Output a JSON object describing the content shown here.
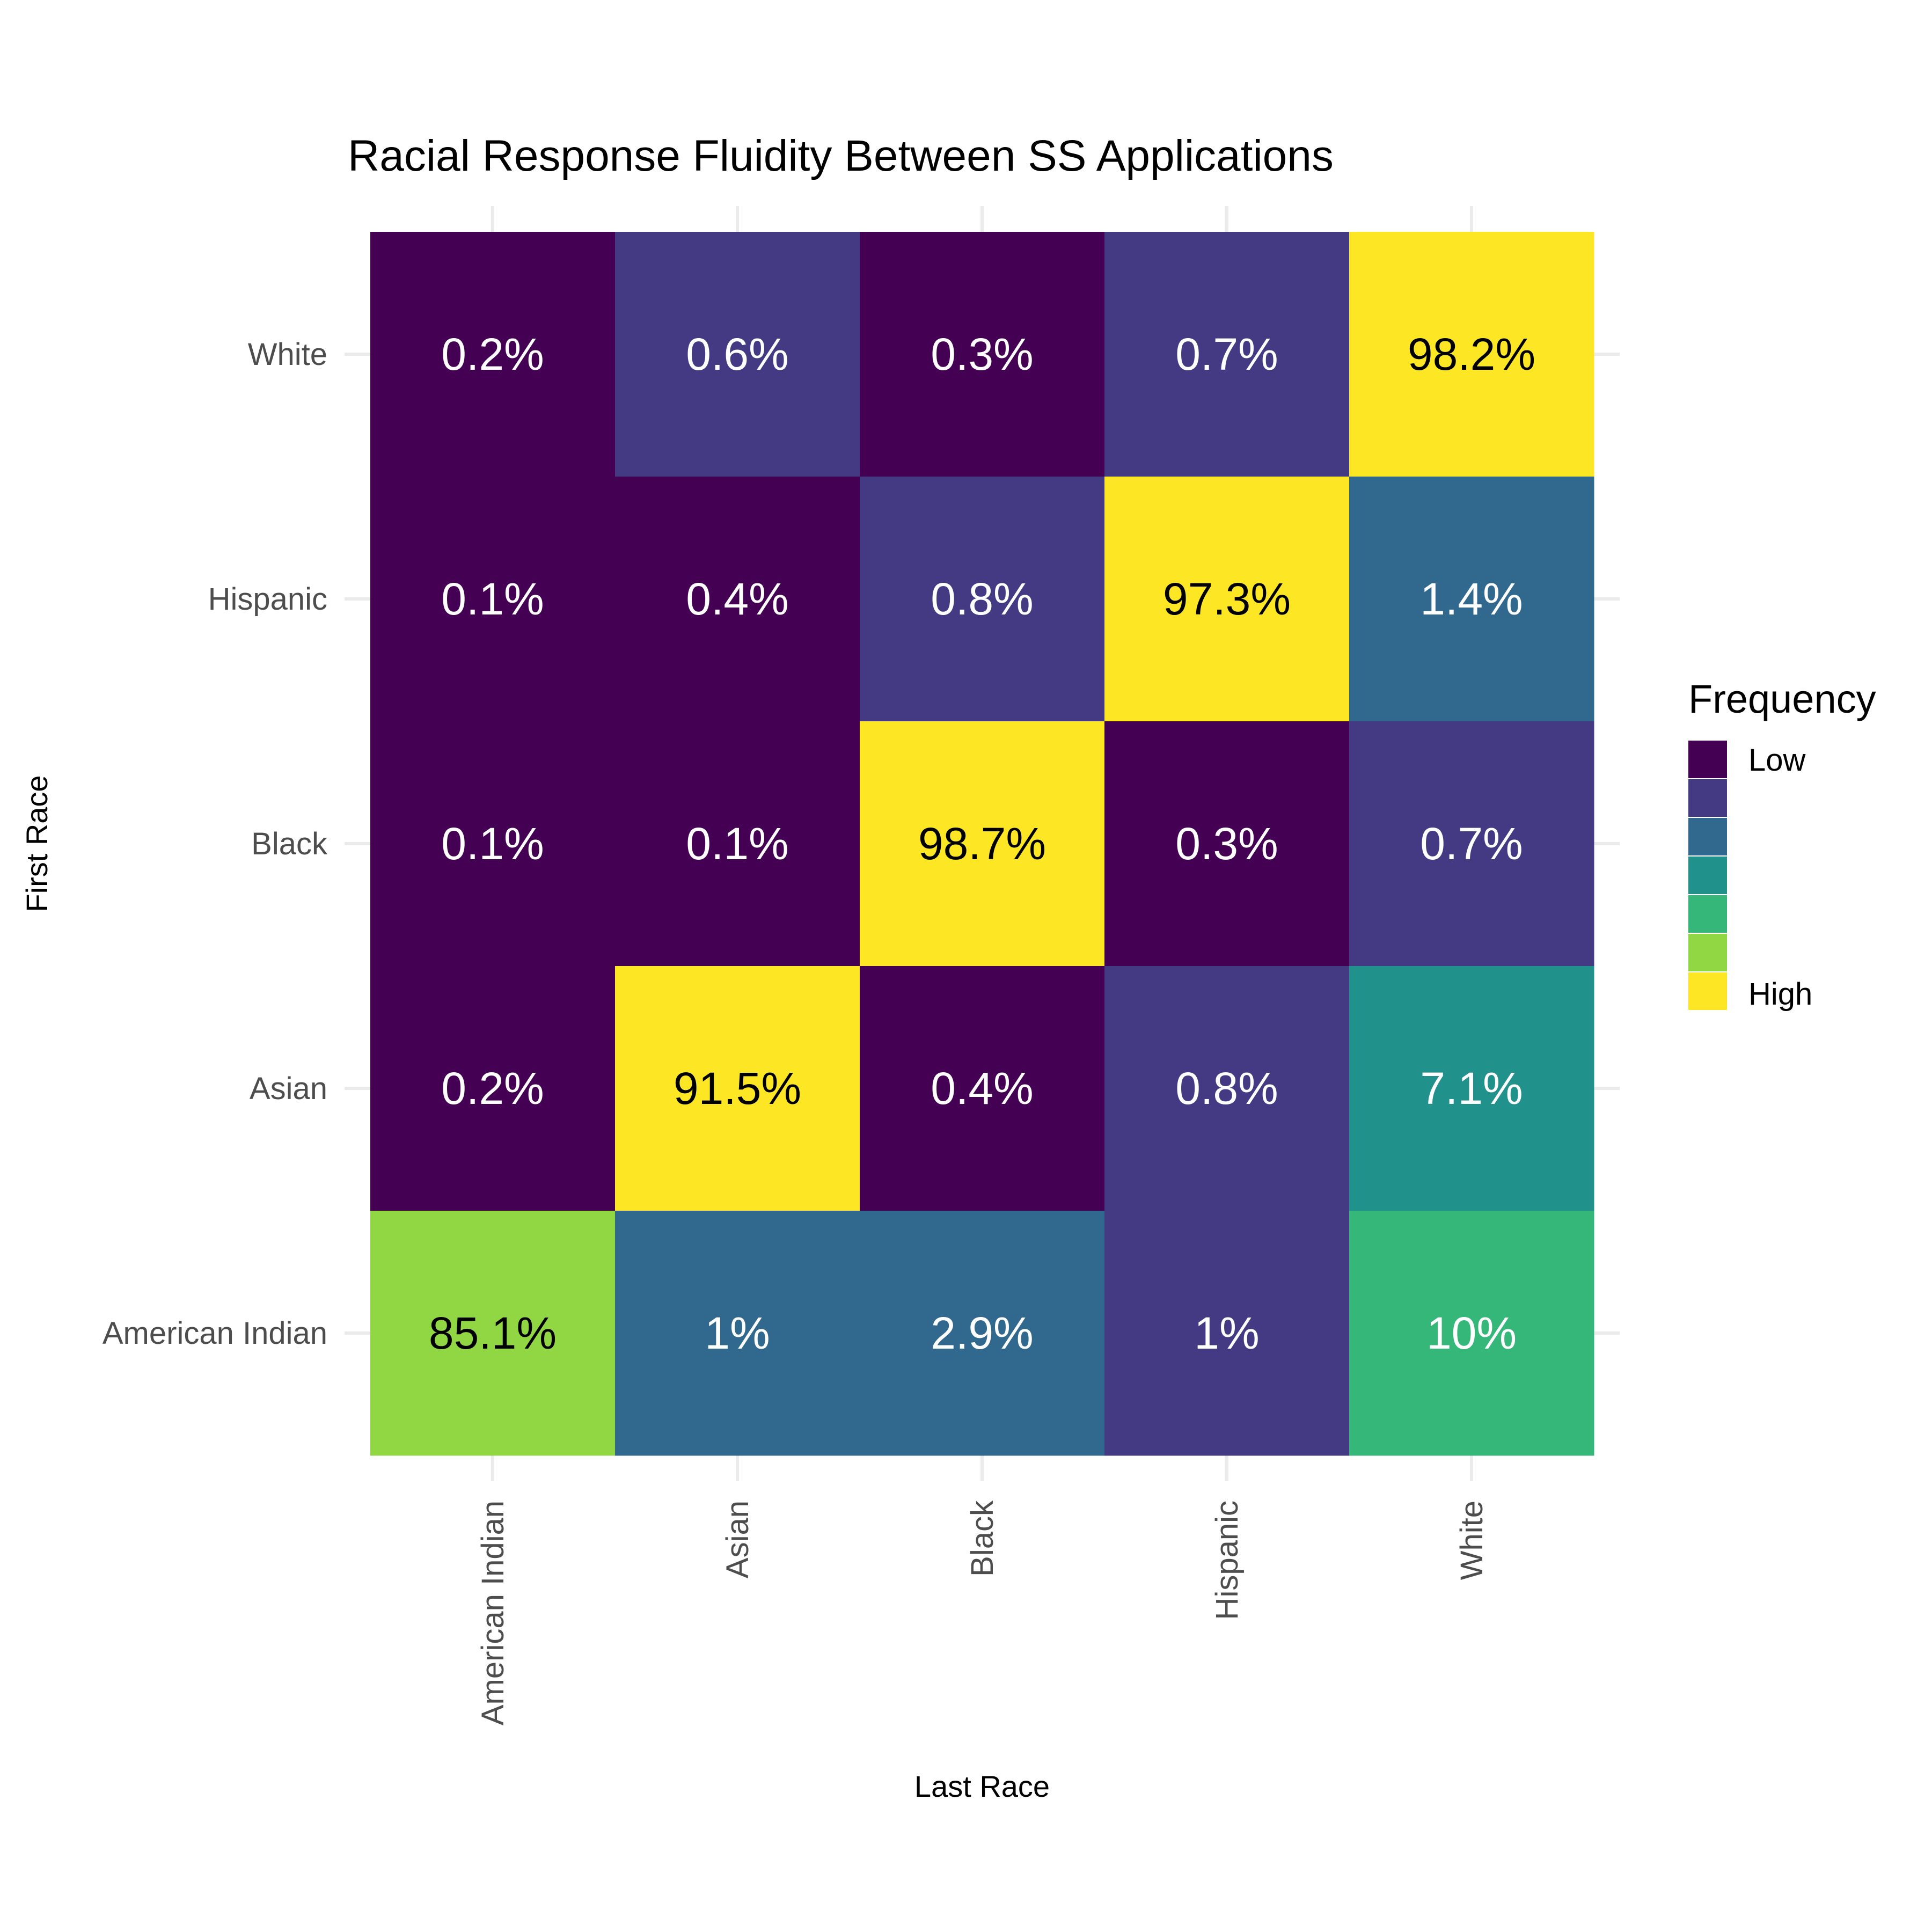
{
  "chart_data": {
    "type": "heatmap",
    "title": "Racial Response Fluidity Between SS Applications",
    "xlabel": "Last Race",
    "ylabel": "First Race",
    "x_categories": [
      "American Indian",
      "Asian",
      "Black",
      "Hispanic",
      "White"
    ],
    "y_categories": [
      "American Indian",
      "Asian",
      "Black",
      "Hispanic",
      "White"
    ],
    "cells": [
      {
        "first": "White",
        "last": "American Indian",
        "label": "0.2%",
        "value": 0.2,
        "level": 1
      },
      {
        "first": "White",
        "last": "Asian",
        "label": "0.6%",
        "value": 0.6,
        "level": 2
      },
      {
        "first": "White",
        "last": "Black",
        "label": "0.3%",
        "value": 0.3,
        "level": 1
      },
      {
        "first": "White",
        "last": "Hispanic",
        "label": "0.7%",
        "value": 0.7,
        "level": 2
      },
      {
        "first": "White",
        "last": "White",
        "label": "98.2%",
        "value": 98.2,
        "level": 7
      },
      {
        "first": "Hispanic",
        "last": "American Indian",
        "label": "0.1%",
        "value": 0.1,
        "level": 1
      },
      {
        "first": "Hispanic",
        "last": "Asian",
        "label": "0.4%",
        "value": 0.4,
        "level": 1
      },
      {
        "first": "Hispanic",
        "last": "Black",
        "label": "0.8%",
        "value": 0.8,
        "level": 2
      },
      {
        "first": "Hispanic",
        "last": "Hispanic",
        "label": "97.3%",
        "value": 97.3,
        "level": 7
      },
      {
        "first": "Hispanic",
        "last": "White",
        "label": "1.4%",
        "value": 1.4,
        "level": 3
      },
      {
        "first": "Black",
        "last": "American Indian",
        "label": "0.1%",
        "value": 0.1,
        "level": 1
      },
      {
        "first": "Black",
        "last": "Asian",
        "label": "0.1%",
        "value": 0.1,
        "level": 1
      },
      {
        "first": "Black",
        "last": "Black",
        "label": "98.7%",
        "value": 98.7,
        "level": 7
      },
      {
        "first": "Black",
        "last": "Hispanic",
        "label": "0.3%",
        "value": 0.3,
        "level": 1
      },
      {
        "first": "Black",
        "last": "White",
        "label": "0.7%",
        "value": 0.7,
        "level": 2
      },
      {
        "first": "Asian",
        "last": "American Indian",
        "label": "0.2%",
        "value": 0.2,
        "level": 1
      },
      {
        "first": "Asian",
        "last": "Asian",
        "label": "91.5%",
        "value": 91.5,
        "level": 7
      },
      {
        "first": "Asian",
        "last": "Black",
        "label": "0.4%",
        "value": 0.4,
        "level": 1
      },
      {
        "first": "Asian",
        "last": "Hispanic",
        "label": "0.8%",
        "value": 0.8,
        "level": 2
      },
      {
        "first": "Asian",
        "last": "White",
        "label": "7.1%",
        "value": 7.1,
        "level": 4
      },
      {
        "first": "American Indian",
        "last": "American Indian",
        "label": "85.1%",
        "value": 85.1,
        "level": 6
      },
      {
        "first": "American Indian",
        "last": "Asian",
        "label": "1%",
        "value": 1,
        "level": 3
      },
      {
        "first": "American Indian",
        "last": "Black",
        "label": "2.9%",
        "value": 2.9,
        "level": 3
      },
      {
        "first": "American Indian",
        "last": "Hispanic",
        "label": "1%",
        "value": 1,
        "level": 2
      },
      {
        "first": "American Indian",
        "last": "White",
        "label": "10%",
        "value": 10,
        "level": 5
      }
    ],
    "legend": {
      "title": "Frequency",
      "placement": "right",
      "low_label": "Low",
      "high_label": "High",
      "colors": [
        "#440154",
        "#443983",
        "#31688e",
        "#21918c",
        "#35b779",
        "#90d743",
        "#fde725"
      ]
    },
    "grid": true
  }
}
